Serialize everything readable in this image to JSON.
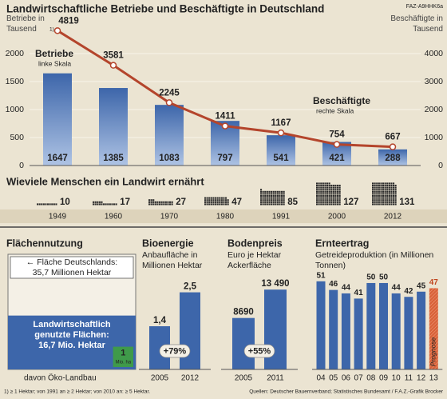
{
  "code": "FAZ-A9HHK6a",
  "chart_data": [
    {
      "type": "bar_line",
      "title": "Landwirtschaftliche Betriebe und Beschäftigte in Deutschland",
      "categories": [
        "1949",
        "1960",
        "1970",
        "1980",
        "1991",
        "2000",
        "2012"
      ],
      "ylabel": "Betriebe in Tausend",
      "ylabel_note": "1)",
      "y2label": "Beschäftigte in Tausend",
      "series": [
        {
          "name": "Betriebe",
          "note": "linke Skala",
          "color": "#3d66aa",
          "values": [
            1647,
            1385,
            1083,
            797,
            541,
            421,
            288
          ]
        },
        {
          "name": "Beschäftigte",
          "note": "rechte Skala",
          "color": "#b4452c",
          "axis": "y2",
          "values": [
            4819,
            3581,
            2245,
            1411,
            1167,
            754,
            667
          ]
        }
      ],
      "ylim": [
        0,
        2400
      ],
      "yticks": [
        0,
        500,
        1000,
        1500,
        2000
      ],
      "y2lim": [
        0,
        4800
      ],
      "y2ticks": [
        0,
        1000,
        2000,
        3000,
        4000
      ],
      "grid": true
    },
    {
      "type": "pictogram",
      "title": "Wieviele Menschen ein Landwirt ernährt",
      "values": [
        10,
        17,
        27,
        47,
        85,
        127,
        131
      ],
      "color": "#2b2b2b"
    },
    {
      "type": "area",
      "title": "Flächennutzung",
      "labels": [
        "Fläche Deutschlands:",
        "Landwirtschaftlich genutzte Flächen:",
        "davon Öko-Landbau"
      ],
      "values": [
        35.7,
        16.7,
        1
      ],
      "value_labels": [
        "35,7 Millionen Hektar",
        "16,7 Mio. Hektar",
        "1"
      ],
      "unit_label": "Mio. ha",
      "colors": [
        "#f4f0e6",
        "#3d66aa",
        "#3f9a4a"
      ]
    },
    {
      "type": "bar",
      "title": "Bioenergie",
      "subtitle": "Anbaufläche in Millionen Hektar",
      "categories": [
        "2005",
        "2012"
      ],
      "values": [
        1.4,
        2.5
      ],
      "value_labels": [
        "1,4",
        "2,5"
      ],
      "change_label": "+79%",
      "color": "#3d66aa",
      "ylim": [
        0,
        2.8
      ]
    },
    {
      "type": "bar",
      "title": "Bodenpreis",
      "subtitle": "Euro je Hektar Ackerfläche",
      "categories": [
        "2005",
        "2011"
      ],
      "values": [
        8690,
        13490
      ],
      "value_labels": [
        "8690",
        "13 490"
      ],
      "change_label": "+55%",
      "color": "#3d66aa",
      "ylim": [
        0,
        15000
      ]
    },
    {
      "type": "bar",
      "title": "Ernteertrag",
      "subtitle": "Getreideproduktion (in Millionen Tonnen)",
      "categories": [
        "04",
        "05",
        "06",
        "07",
        "08",
        "09",
        "10",
        "11",
        "12",
        "13"
      ],
      "values": [
        51,
        46,
        44,
        41,
        50,
        50,
        44,
        42,
        45,
        47
      ],
      "colors": [
        "#3d66aa",
        "#3d66aa",
        "#3d66aa",
        "#3d66aa",
        "#3d66aa",
        "#3d66aa",
        "#3d66aa",
        "#3d66aa",
        "#3d66aa",
        "#d9623a"
      ],
      "annotation": "Prognose",
      "ylim": [
        0,
        56
      ]
    }
  ],
  "footnote": "1) ≥ 1 Hektar; von 1991 an ≥ 2 Hektar; von 2010 an: ≥ 5 Hektar.",
  "source": "Quellen: Deutscher Bauernverband; Statistisches Bundesamt / F.A.Z.-Grafik Brocker"
}
